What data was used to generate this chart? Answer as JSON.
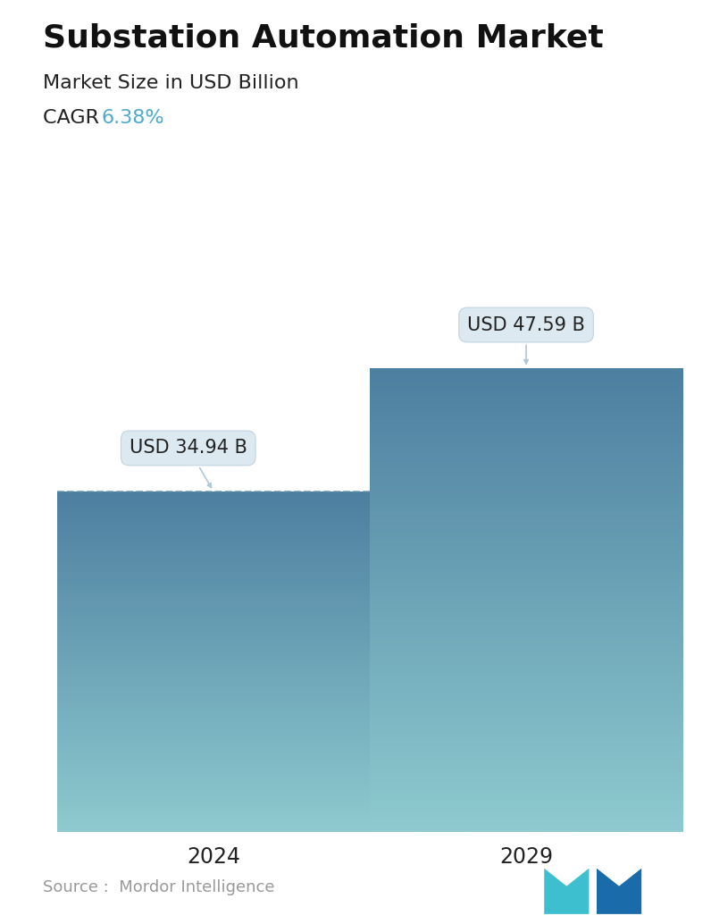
{
  "title": "Substation Automation Market",
  "subtitle": "Market Size in USD Billion",
  "cagr_label": "CAGR",
  "cagr_value": "6.38%",
  "cagr_color": "#4DAACC",
  "categories": [
    "2024",
    "2029"
  ],
  "values": [
    34.94,
    47.59
  ],
  "labels": [
    "USD 34.94 B",
    "USD 47.59 B"
  ],
  "bar_color_top": "#4D7FA0",
  "bar_color_bottom": "#8ECACF",
  "dashed_line_color": "#6090AA",
  "source_text": "Source :  Mordor Intelligence",
  "source_color": "#999999",
  "background_color": "#FFFFFF",
  "title_fontsize": 26,
  "subtitle_fontsize": 16,
  "cagr_fontsize": 16,
  "label_fontsize": 15,
  "tick_fontsize": 17,
  "source_fontsize": 13,
  "ylim_max": 55
}
